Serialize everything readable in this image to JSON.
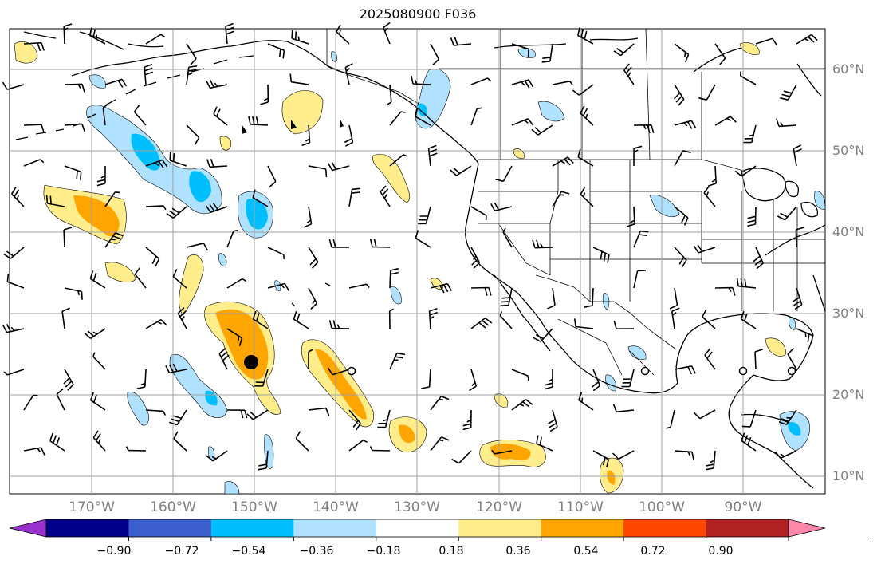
{
  "title": "2025080900 F036",
  "lat_labels": [
    "60°N",
    "50°N",
    "40°N",
    "30°N",
    "20°N",
    "10°N"
  ],
  "lon_labels": [
    "170°W",
    "160°W",
    "150°W",
    "140°W",
    "130°W",
    "120°W",
    "110°W",
    "100°W",
    "90°W"
  ],
  "colorbar": {
    "labels": [
      "−0.90",
      "−0.72",
      "−0.54",
      "−0.36",
      "−0.18",
      "0.18",
      "0.36",
      "0.54",
      "0.72",
      "0.90"
    ],
    "colors": [
      "#9932cc",
      "#00008b",
      "#3a5fcd",
      "#00bfff",
      "#b0e2ff",
      "#ffffff",
      "#ffec8b",
      "#ffa500",
      "#ff4500",
      "#b22222",
      "#ff88aa"
    ]
  },
  "legend_colors": {
    "pos_1": "#ffec8b",
    "pos_2": "#ffa500",
    "neg_1": "#b0e2ff",
    "neg_2": "#00bfff",
    "coast": "#000000",
    "grid": "#a0a0a0"
  }
}
